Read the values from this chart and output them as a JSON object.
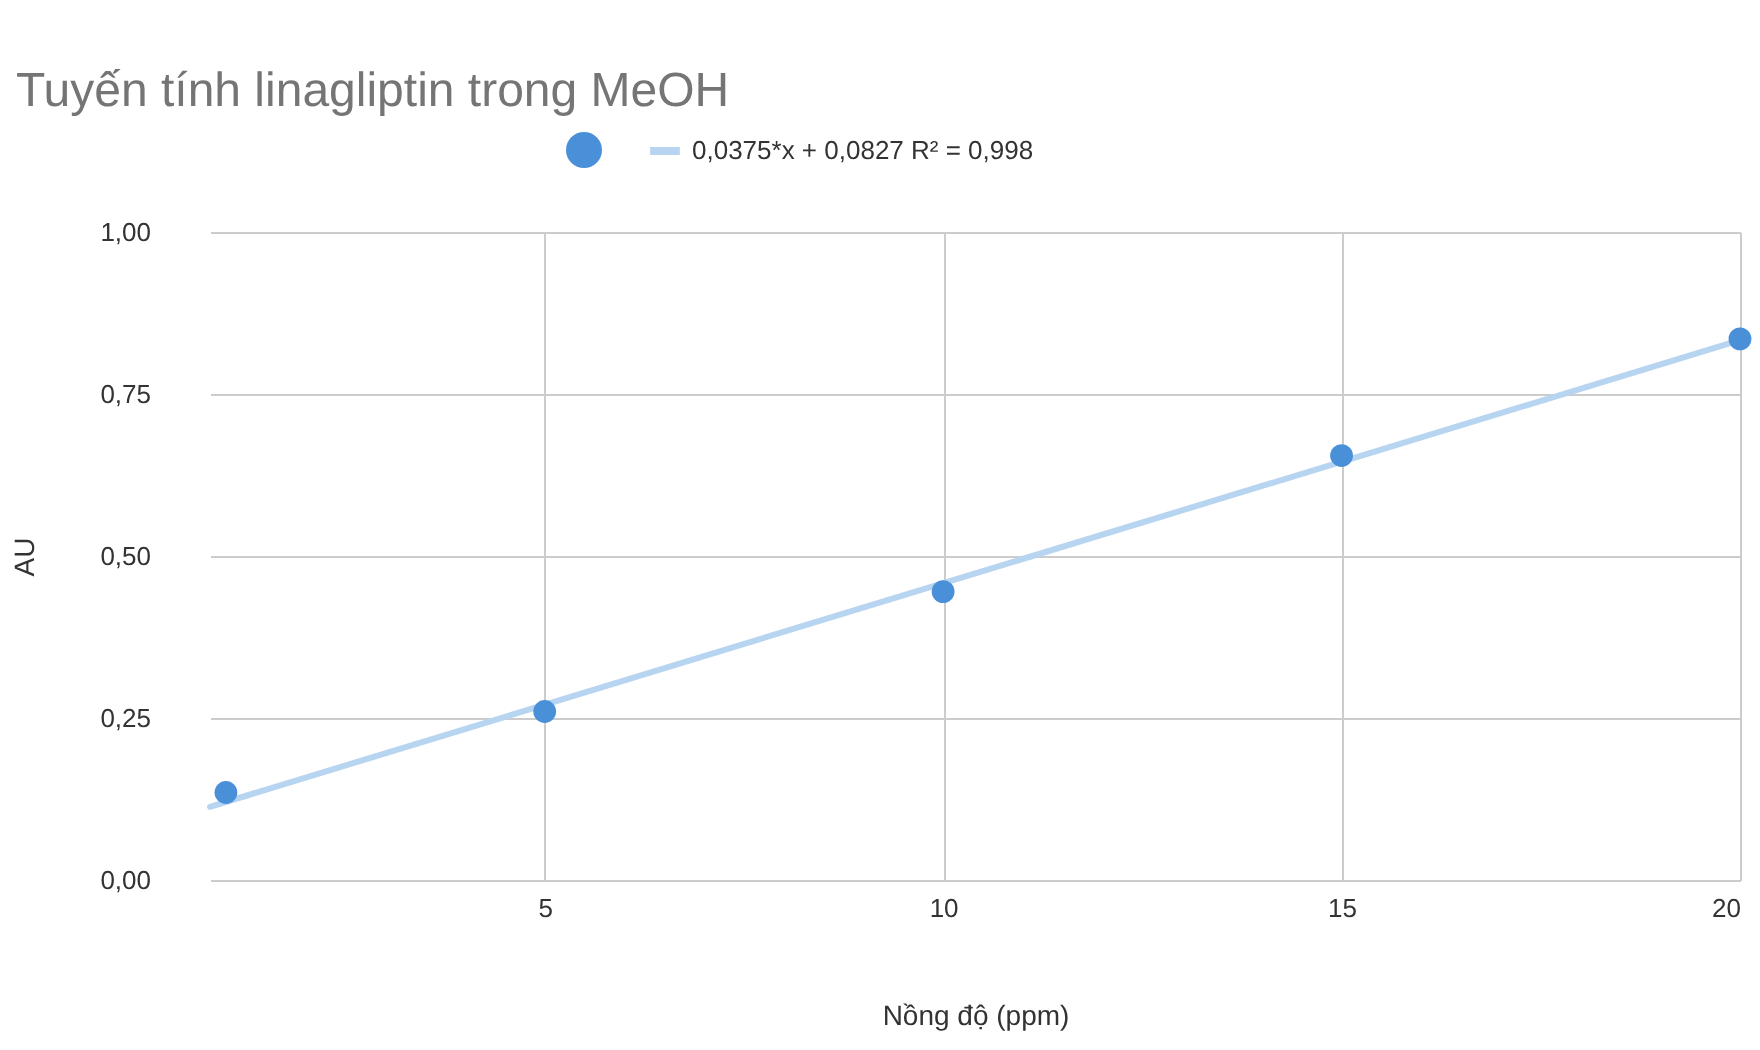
{
  "chart_data": {
    "type": "scatter",
    "title": "Tuyến tính linagliptin trong MeOH",
    "xlabel": "Nồng độ (ppm)",
    "ylabel": "AU",
    "xlim": [
      0.8,
      20
    ],
    "xticks": [
      5,
      10,
      15,
      20
    ],
    "ylim": [
      0,
      1
    ],
    "yticks": [
      {
        "value": 0,
        "label": "0,00"
      },
      {
        "value": 0.25,
        "label": "0,25"
      },
      {
        "value": 0.5,
        "label": "0,50"
      },
      {
        "value": 0.75,
        "label": "0,75"
      },
      {
        "value": 1,
        "label": "1,00"
      }
    ],
    "grid": true,
    "legend": "top",
    "series": [
      {
        "marker": "circle",
        "color": "#4a90d9",
        "x": [
          1,
          5,
          10,
          15,
          20
        ],
        "values": [
          0.135,
          0.26,
          0.445,
          0.655,
          0.835
        ]
      },
      {
        "type": "line",
        "name": "0,0375*x + 0,0827 R² = 0,998",
        "color": "#b7d4f0",
        "x": [
          0.8,
          20
        ],
        "values": [
          0.113,
          0.833
        ]
      }
    ]
  }
}
